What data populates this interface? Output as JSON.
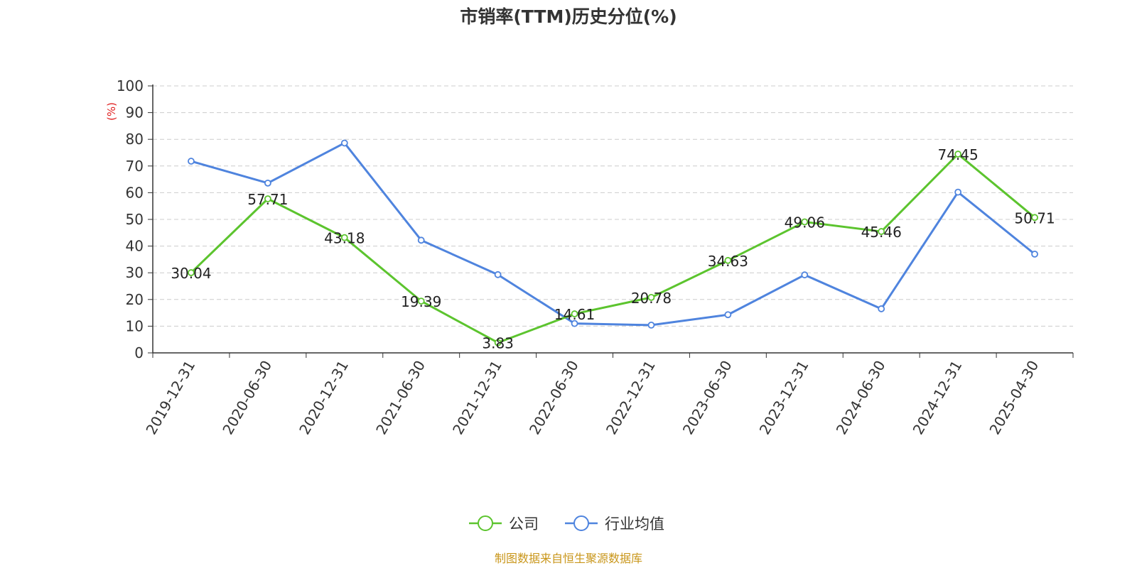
{
  "chart_data": {
    "type": "line",
    "title": "市销率(TTM)历史分位(%)",
    "ylabel": "(%)",
    "ylim": [
      0,
      100
    ],
    "yticks": [
      0,
      10,
      20,
      30,
      40,
      50,
      60,
      70,
      80,
      90,
      100
    ],
    "categories": [
      "2019-12-31",
      "2020-06-30",
      "2020-12-31",
      "2021-06-30",
      "2021-12-31",
      "2022-06-30",
      "2022-12-31",
      "2023-06-30",
      "2023-12-31",
      "2024-06-30",
      "2024-12-31",
      "2025-04-30"
    ],
    "grid": true,
    "legend_position": "bottom",
    "series": [
      {
        "name": "公司",
        "color": "#5cc42e",
        "values": [
          30.04,
          57.71,
          43.18,
          19.39,
          3.83,
          14.61,
          20.78,
          34.63,
          49.06,
          45.46,
          74.45,
          50.71
        ],
        "labels": [
          "30.04",
          "57.71",
          "43.18",
          "19.39",
          "3.83",
          "14.61",
          "20.78",
          "34.63",
          "49.06",
          "45.46",
          "74.45",
          "50.71"
        ]
      },
      {
        "name": "行业均值",
        "color": "#4f84de",
        "values": [
          71.8,
          63.6,
          78.6,
          42.2,
          29.3,
          11.0,
          10.4,
          14.3,
          29.2,
          16.5,
          60.2,
          37.0
        ]
      }
    ]
  },
  "source": {
    "text": "制图数据来自恒生聚源数据库",
    "color": "#c9961a"
  },
  "colors": {
    "axis": "#333333",
    "grid": "#cccccc",
    "unit": "#e02020"
  }
}
